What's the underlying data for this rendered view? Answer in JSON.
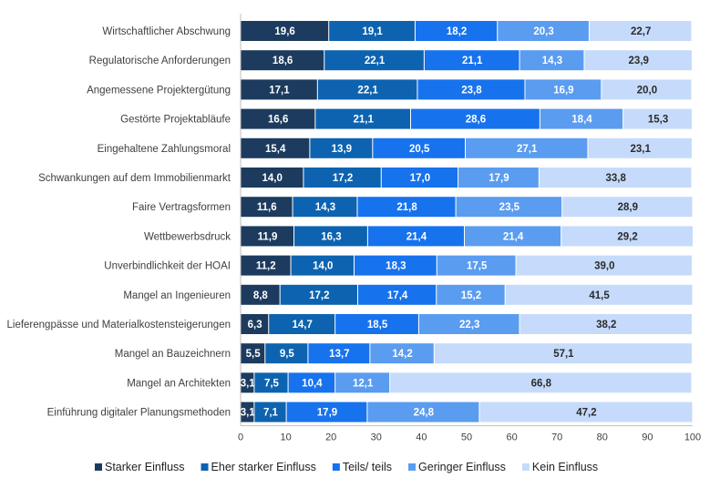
{
  "chart_data": {
    "type": "bar",
    "orientation": "horizontal",
    "stacked": true,
    "categories": [
      "Wirtschaftlicher Abschwung",
      "Regulatorische Anforderungen",
      "Angemessene Projektergütung",
      "Gestörte Projektabläufe",
      "Eingehaltene Zahlungsmoral",
      "Schwankungen auf dem Immobilienmarkt",
      "Faire Vertragsformen",
      "Wettbewerbsdruck",
      "Unverbindlichkeit der HOAI",
      "Mangel an Ingenieuren",
      "Lieferengpässe und Materialkostensteigerungen",
      "Mangel an Bauzeichnern",
      "Mangel an Architekten",
      "Einführung digitaler Planungsmethoden"
    ],
    "series": [
      {
        "name": "Starker Einfluss",
        "color": "#1c3b5e",
        "label_color": "#ffffff",
        "values": [
          19.6,
          18.6,
          17.1,
          16.6,
          15.4,
          14.0,
          11.6,
          11.9,
          11.2,
          8.8,
          6.3,
          5.5,
          3.1,
          3.1
        ]
      },
      {
        "name": "Eher starker Einfluss",
        "color": "#0d63b0",
        "label_color": "#ffffff",
        "values": [
          19.1,
          22.1,
          22.1,
          21.1,
          13.9,
          17.2,
          14.3,
          16.3,
          14.0,
          17.2,
          14.7,
          9.5,
          7.5,
          7.1
        ]
      },
      {
        "name": "Teils/ teils",
        "color": "#1772ee",
        "label_color": "#ffffff",
        "values": [
          18.2,
          21.1,
          23.8,
          28.6,
          20.5,
          17.0,
          21.8,
          21.4,
          18.3,
          17.4,
          18.5,
          13.7,
          10.4,
          17.9
        ]
      },
      {
        "name": "Geringer Einfluss",
        "color": "#5a9cf0",
        "label_color": "#ffffff",
        "values": [
          20.3,
          14.3,
          16.9,
          18.4,
          27.1,
          17.9,
          23.5,
          21.4,
          17.5,
          15.2,
          22.3,
          14.2,
          12.1,
          24.8
        ]
      },
      {
        "name": "Kein Einfluss",
        "color": "#c6dbfb",
        "label_color": "#2b2b2b",
        "values": [
          22.7,
          23.9,
          20.0,
          15.3,
          23.1,
          33.8,
          28.9,
          29.2,
          39.0,
          41.5,
          38.2,
          57.1,
          66.8,
          47.2
        ]
      }
    ],
    "xlim": [
      0,
      100
    ],
    "xticks": [
      0,
      10,
      20,
      30,
      40,
      50,
      60,
      70,
      80,
      90,
      100
    ],
    "grid": false,
    "legend_position": "bottom"
  }
}
